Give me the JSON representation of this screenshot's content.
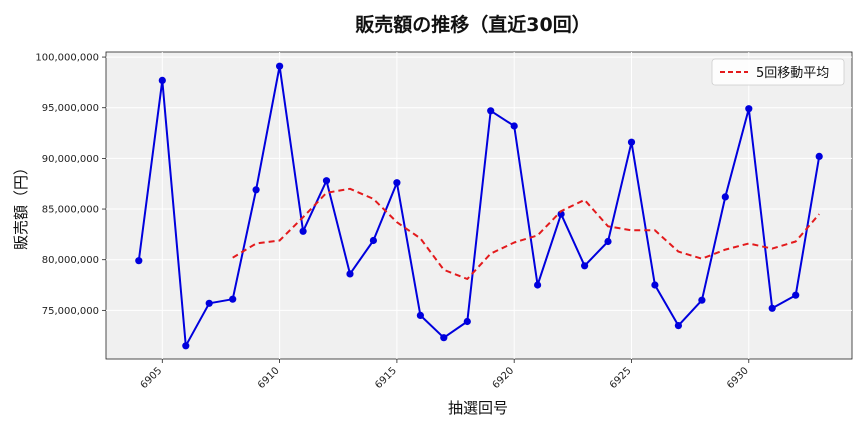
{
  "chart_data": {
    "type": "line",
    "title": "販売額の推移（直近30回）",
    "xlabel": "抽選回号",
    "ylabel": "販売額（円）",
    "x": [
      6904,
      6905,
      6906,
      6907,
      6908,
      6909,
      6910,
      6911,
      6912,
      6913,
      6914,
      6915,
      6916,
      6917,
      6918,
      6919,
      6920,
      6921,
      6922,
      6923,
      6924,
      6925,
      6926,
      6927,
      6928,
      6929,
      6930,
      6931,
      6932,
      6933
    ],
    "x_ticks": [
      "6905",
      "6910",
      "6915",
      "6920",
      "6925",
      "6930"
    ],
    "y_ticks": [
      "75,000,000",
      "80,000,000",
      "85,000,000",
      "90,000,000",
      "95,000,000",
      "100,000,000"
    ],
    "xlim": [
      6902.6,
      6934.4
    ],
    "ylim": [
      70200000,
      100500000
    ],
    "grid": true,
    "legend_position": "top-right",
    "series": [
      {
        "name": "",
        "color": "#0000dd",
        "style": "solid-markers",
        "values": [
          79900000,
          97700000,
          71500000,
          75700000,
          76100000,
          86900000,
          99100000,
          82800000,
          87800000,
          78600000,
          81900000,
          87600000,
          74500000,
          72300000,
          73900000,
          94700000,
          93200000,
          77500000,
          84500000,
          79400000,
          81800000,
          91600000,
          77500000,
          73500000,
          76000000,
          86200000,
          94900000,
          75200000,
          76500000,
          90200000
        ]
      },
      {
        "name": "5回移動平均",
        "color": "#e31a1c",
        "style": "dashed",
        "values": [
          null,
          null,
          null,
          null,
          80200000,
          81600000,
          81900000,
          84200000,
          86600000,
          87000000,
          86000000,
          83700000,
          82100000,
          79000000,
          78100000,
          80600000,
          81700000,
          82400000,
          84800000,
          85900000,
          83300000,
          82900000,
          82900000,
          80800000,
          80100000,
          81000000,
          81600000,
          81100000,
          81800000,
          84500000
        ]
      }
    ]
  }
}
